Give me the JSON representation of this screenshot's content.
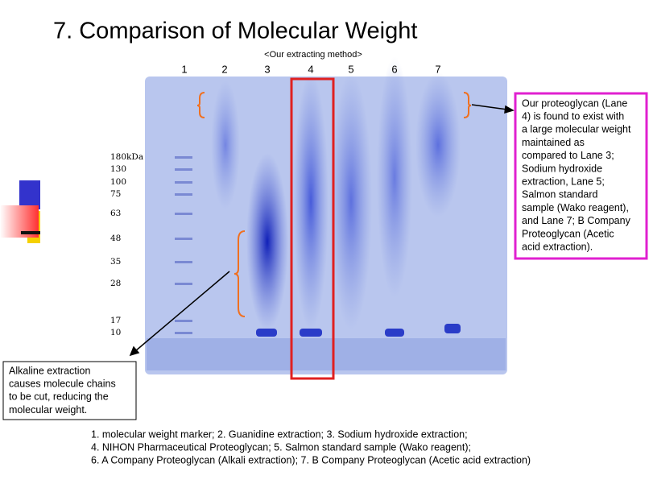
{
  "header": {
    "title": "7. Comparison of Molecular Weight",
    "subtitle": "<Our extracting method>"
  },
  "gel": {
    "lanes": [
      "1",
      "2",
      "3",
      "4",
      "5",
      "6",
      "7"
    ],
    "markers": [
      "180kDa",
      "130",
      "100",
      "75",
      "63",
      "48",
      "35",
      "28",
      "17",
      "10"
    ]
  },
  "callout_right": {
    "lines": [
      "Our proteoglycan (Lane",
      "4) is found to exist with",
      "a large molecular weight",
      "maintained as",
      "compared to Lane 3;",
      "Sodium hydroxide",
      "extraction, Lane 5;",
      "Salmon standard",
      "sample (Wako reagent),",
      "and Lane 7; B Company",
      "Proteoglycan (Acetic",
      "acid extraction)."
    ]
  },
  "callout_left": {
    "lines": [
      "Alkaline extraction",
      "causes molecule chains",
      "to be cut, reducing the",
      "molecular weight."
    ]
  },
  "caption": {
    "lines": [
      "1. molecular weight marker;  2. Guanidine extraction;  3. Sodium hydroxide extraction;",
      "4. NIHON Pharmaceutical Proteoglycan;  5. Salmon standard sample (Wako reagent);",
      "6. A Company Proteoglycan (Alkali extraction);  7. B Company Proteoglycan (Acetic acid extraction)"
    ]
  }
}
